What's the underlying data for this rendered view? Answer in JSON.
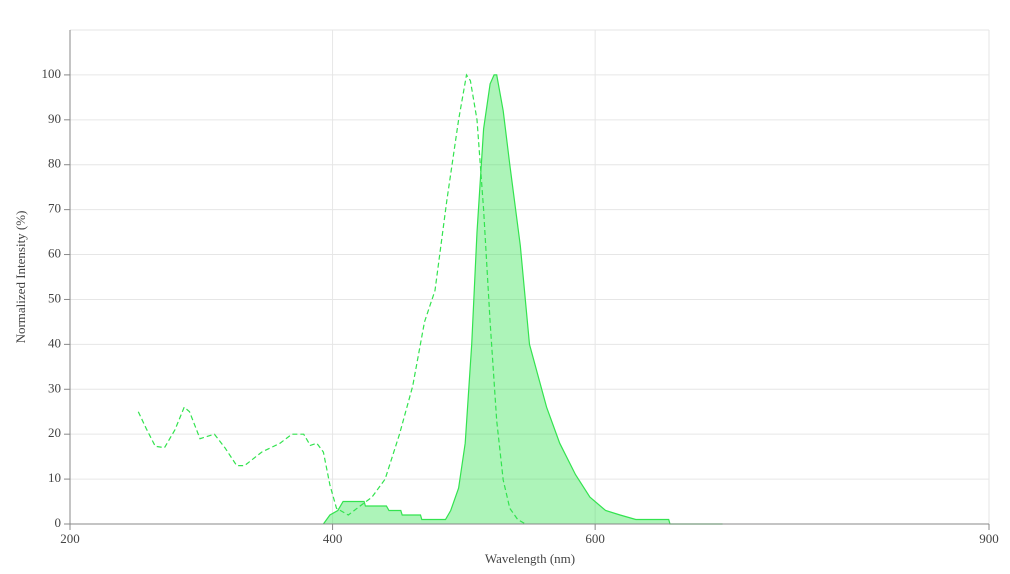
{
  "chart_data": {
    "type": "line",
    "xlabel": "Wavelength (nm)",
    "ylabel": "Normalized Intensity (%)",
    "xlim": [
      200,
      900
    ],
    "xticks": [
      200,
      400,
      600,
      900
    ],
    "ylim": [
      0,
      110
    ],
    "yticks": [
      0,
      10,
      20,
      30,
      40,
      50,
      60,
      70,
      80,
      90,
      100
    ],
    "grid": true,
    "series": [
      {
        "color": "#33e34f",
        "dashed": true,
        "filled": false,
        "x": [
          252,
          258,
          265,
          272,
          280,
          287,
          291,
          299,
          310,
          318,
          327,
          333,
          346,
          360,
          369,
          378,
          383,
          388,
          393,
          398,
          403,
          412,
          421,
          430,
          440,
          451,
          461,
          470,
          478,
          487,
          496,
          502,
          505,
          510,
          515,
          520,
          525,
          530,
          535,
          541,
          547
        ],
        "values": [
          25,
          21.3,
          17.3,
          17,
          21,
          26,
          25,
          19,
          20,
          17,
          13,
          13,
          16,
          18,
          20,
          20,
          17.5,
          18,
          16,
          8.7,
          3.5,
          2,
          4,
          6,
          10,
          20,
          30.7,
          45,
          52,
          72,
          90,
          100,
          98.7,
          90,
          70,
          45,
          23,
          9.8,
          3.5,
          1,
          0
        ]
      },
      {
        "color": "#33e34f",
        "dashed": false,
        "filled": true,
        "x": [
          393,
          398,
          404,
          408,
          424,
          425,
          441,
          443,
          452,
          453,
          467,
          468,
          486,
          490,
          496,
          501,
          506,
          510,
          515,
          520,
          523,
          525,
          530,
          535,
          543,
          550,
          563,
          573,
          585,
          596,
          608,
          619,
          631,
          656,
          657,
          697
        ],
        "values": [
          0,
          2,
          3,
          5,
          5,
          4,
          4,
          3,
          3,
          2,
          2,
          1,
          1,
          3,
          8,
          18,
          40,
          65,
          88,
          98,
          100,
          100,
          92,
          80,
          62,
          40,
          26,
          18,
          11,
          6,
          3,
          2,
          1,
          1,
          0,
          0
        ]
      }
    ]
  }
}
